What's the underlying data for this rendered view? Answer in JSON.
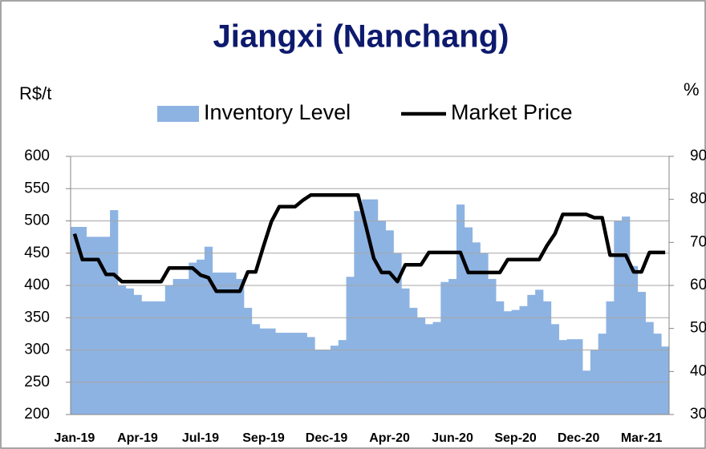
{
  "chart_data": {
    "type": "bar_line",
    "title": "Jiangxi (Nanchang)",
    "ylabel": "R$/t",
    "y2label": "%",
    "legend": "upper center",
    "grid": true,
    "categories": [
      "Jan-19",
      null,
      null,
      null,
      null,
      null,
      null,
      null,
      "Apr-19",
      null,
      null,
      null,
      null,
      null,
      null,
      null,
      "Jul-19",
      null,
      null,
      null,
      null,
      null,
      null,
      null,
      "Sep-19",
      null,
      null,
      null,
      null,
      null,
      null,
      null,
      "Dec-19",
      null,
      null,
      null,
      null,
      null,
      null,
      null,
      "Apr-20",
      null,
      null,
      null,
      null,
      null,
      null,
      null,
      "Jun-20",
      null,
      null,
      null,
      null,
      null,
      null,
      null,
      "Sep-20",
      null,
      null,
      null,
      null,
      null,
      null,
      null,
      "Dec-20",
      null,
      null,
      null,
      null,
      null,
      null,
      null,
      "Mar-21",
      null,
      null,
      null
    ],
    "ylim": [
      200,
      600
    ],
    "yticks": [
      200,
      250,
      300,
      350,
      400,
      450,
      500,
      550,
      600
    ],
    "y2lim": [
      30,
      90
    ],
    "y2ticks": [
      30,
      40,
      50,
      60,
      70,
      80,
      90
    ],
    "series": [
      {
        "name": "Inventory Level",
        "type": "bar",
        "axis": "y2",
        "color": "#8db3e2",
        "values": [
          73.6,
          73.6,
          71.3,
          71.3,
          71.3,
          77.5,
          60,
          59.3,
          57.8,
          56.3,
          56.3,
          56.3,
          60,
          61.5,
          61.5,
          65.3,
          66,
          69,
          63,
          63,
          63,
          61.5,
          54.8,
          51,
          50,
          50,
          49,
          49,
          49,
          49,
          48,
          45,
          45,
          46,
          47.3,
          62,
          77.3,
          80,
          80,
          75,
          72.8,
          67.5,
          59.3,
          54.8,
          52.5,
          51,
          51.5,
          60.8,
          61.5,
          78.8,
          73.5,
          70,
          67.5,
          61.5,
          56.3,
          54,
          54.3,
          55.2,
          57.8,
          59,
          56.3,
          51,
          47.3,
          47.5,
          47.5,
          40.2,
          45,
          48.8,
          56.3,
          75,
          76,
          64.5,
          58.5,
          51.5,
          48.8,
          45.8
        ]
      },
      {
        "name": "Market Price",
        "type": "line",
        "color": "#000000",
        "values": [
          480,
          440,
          440,
          440,
          417,
          417,
          406,
          406,
          406,
          406,
          406,
          406,
          427,
          427,
          427,
          427,
          416,
          412,
          391,
          391,
          391,
          391,
          421,
          421,
          461,
          499,
          522,
          522,
          522,
          532,
          540,
          540,
          540,
          540,
          540,
          540,
          540,
          492,
          442,
          420,
          420,
          406,
          432,
          432,
          432,
          451,
          451,
          451,
          451,
          451,
          420,
          420,
          420,
          420,
          420,
          440,
          440,
          440,
          440,
          440,
          462,
          480,
          510,
          510,
          510,
          510,
          505,
          505,
          447,
          447,
          447,
          421,
          421,
          451,
          451,
          451
        ]
      }
    ]
  }
}
